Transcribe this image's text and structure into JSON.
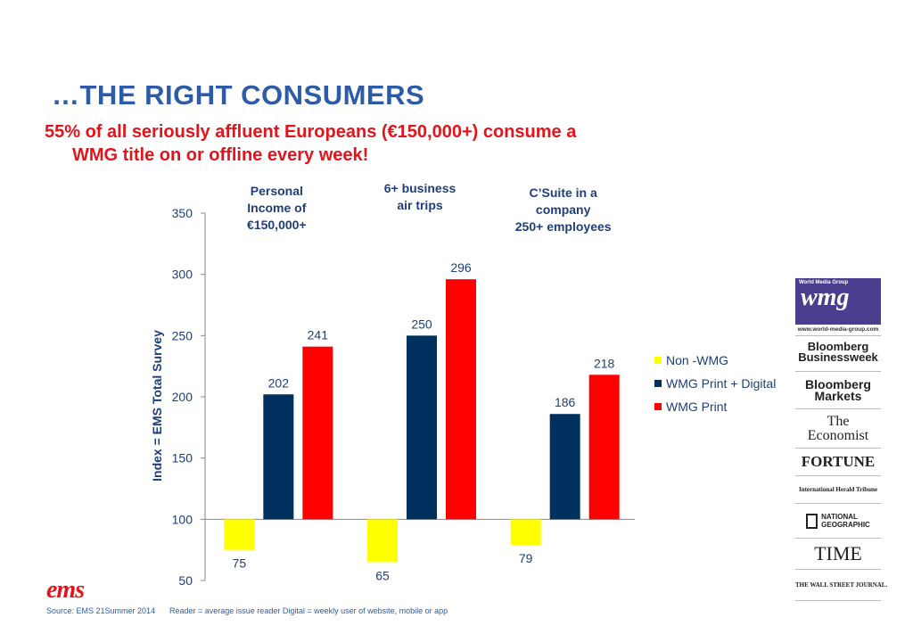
{
  "header": {
    "title": "…THE RIGHT CONSUMERS",
    "subtitle_line1": "55% of all seriously affluent Europeans (€150,000+) consume a",
    "subtitle_line2": "WMG title on or offline every week!"
  },
  "chart_data": {
    "type": "bar",
    "ylabel": "Index = EMS Total Survey",
    "ylim": [
      50,
      350
    ],
    "yticks": [
      50,
      100,
      150,
      200,
      250,
      300,
      350
    ],
    "baseline": 100,
    "categories": [
      [
        "Personal",
        "Income of",
        "€150,000+"
      ],
      [
        "6+ business",
        "air trips"
      ],
      [
        "C’Suite in a",
        "company",
        "250+ employees"
      ]
    ],
    "series": [
      {
        "name": "Non -WMG",
        "color": "#FFFF00",
        "values": [
          75,
          65,
          79
        ]
      },
      {
        "name": "WMG Print + Digital",
        "color": "#00305E",
        "values": [
          202,
          250,
          186
        ]
      },
      {
        "name": "WMG Print",
        "color": "#FF0000",
        "values": [
          241,
          296,
          218
        ]
      }
    ],
    "legend_position": "right",
    "grid": false
  },
  "logos": {
    "wmg_small": "World Media Group",
    "wmg_main": "wmg",
    "wmg_url": "www.world-media-group.com",
    "bbw_1": "Bloomberg",
    "bbw_2": "Businessweek",
    "bbm_1": "Bloomberg",
    "bbm_2": "Markets",
    "economist_1": "The",
    "economist_2": "Economist",
    "fortune": "FORTUNE",
    "iht": "International Herald Tribune",
    "natgeo_1": "NATIONAL",
    "natgeo_2": "GEOGRAPHIC",
    "time": "TIME",
    "wsj": "THE WALL STREET JOURNAL."
  },
  "footer": {
    "ems_logo": "ems",
    "source": "Source: EMS 21Summer 2014",
    "note": "Reader = average issue reader Digital = weekly user of website, mobile or app"
  }
}
